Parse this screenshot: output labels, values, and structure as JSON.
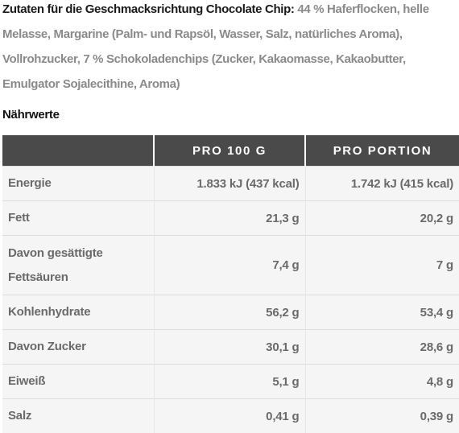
{
  "ingredients": {
    "lead": "Zutaten für die Geschmacksrichtung Chocolate Chip:",
    "text": "44 % Haferflocken, helle Melasse, Margarine (Palm- und Rapsöl, Wasser, Salz, natürliches Aroma), Vollrohzucker, 7 % Schokoladenchips (Zucker, Kakaomasse, Kakaobutter, Emulgator Sojalecithine, Aroma)"
  },
  "nutrition": {
    "heading": "Nährwerte",
    "columns": [
      "",
      "PRO 100 G",
      "PRO PORTION"
    ],
    "rows": [
      {
        "label": "Energie",
        "per100": "1.833 kJ (437 kcal)",
        "portion": "1.742 kJ (415 kcal)"
      },
      {
        "label": "Fett",
        "per100": "21,3 g",
        "portion": "20,2 g"
      },
      {
        "label": "Davon gesättigte Fettsäuren",
        "per100": "7,4 g",
        "portion": "7 g"
      },
      {
        "label": "Kohlenhydrate",
        "per100": "56,2 g",
        "portion": "53,4 g"
      },
      {
        "label": "Davon Zucker",
        "per100": "30,1 g",
        "portion": "28,6 g"
      },
      {
        "label": "Eiweiß",
        "per100": "5,1 g",
        "portion": "4,8 g"
      },
      {
        "label": "Salz",
        "per100": "0,41 g",
        "portion": "0,39 g"
      }
    ]
  }
}
